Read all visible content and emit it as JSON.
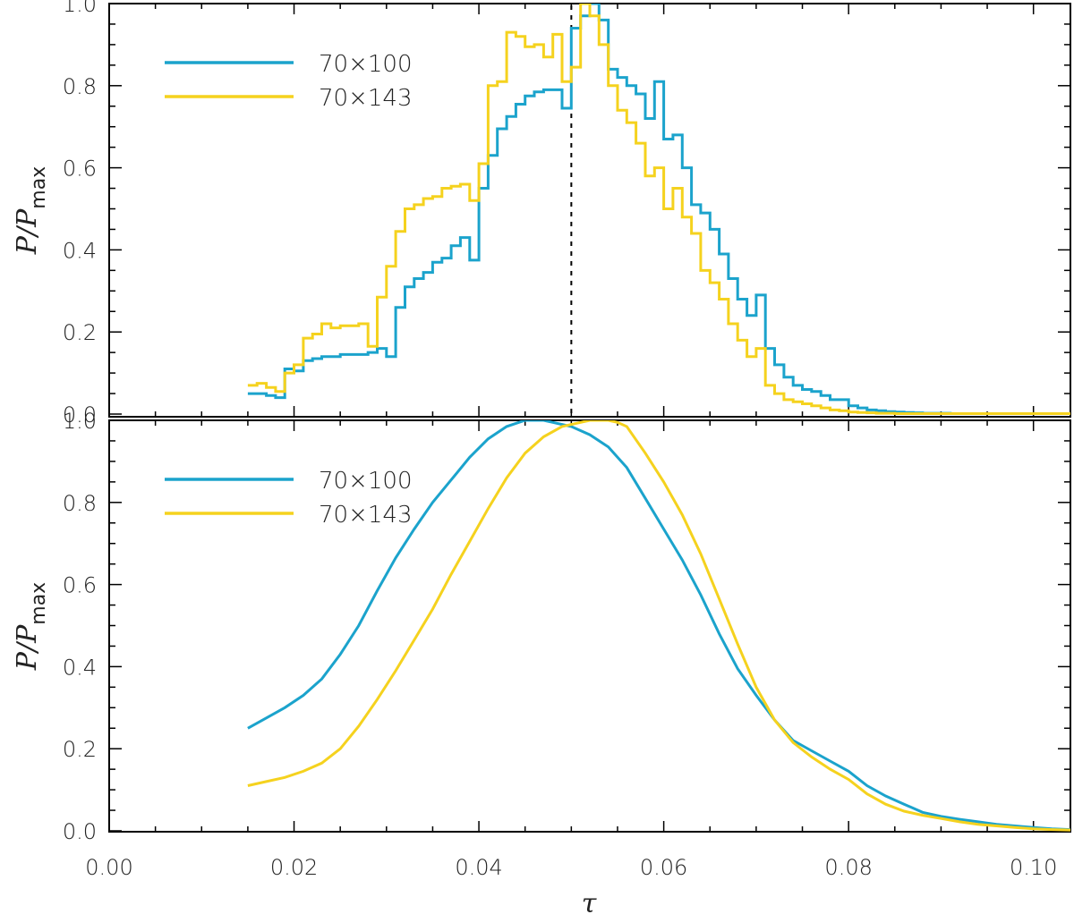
{
  "chart_data": [
    {
      "type": "line",
      "panel": "top",
      "style": "step",
      "xlim": [
        0.0,
        0.104
      ],
      "ylim": [
        0.0,
        1.0
      ],
      "yticks": [
        "0.0",
        "0.2",
        "0.4",
        "0.6",
        "0.8",
        "1.0"
      ],
      "ylabel": "P/P",
      "ylabel_sub": "max",
      "marker_line_x": 0.05,
      "legend": "top-left",
      "series": [
        {
          "name": "70×100",
          "color": "#1ba3cc",
          "x": [
            0.015,
            0.016,
            0.017,
            0.018,
            0.019,
            0.02,
            0.021,
            0.022,
            0.023,
            0.024,
            0.025,
            0.026,
            0.027,
            0.028,
            0.029,
            0.03,
            0.031,
            0.032,
            0.033,
            0.034,
            0.035,
            0.036,
            0.037,
            0.038,
            0.039,
            0.04,
            0.041,
            0.042,
            0.043,
            0.044,
            0.045,
            0.046,
            0.047,
            0.048,
            0.049,
            0.05,
            0.051,
            0.052,
            0.053,
            0.054,
            0.055,
            0.056,
            0.057,
            0.058,
            0.059,
            0.06,
            0.061,
            0.062,
            0.063,
            0.064,
            0.065,
            0.066,
            0.067,
            0.068,
            0.069,
            0.07,
            0.071,
            0.072,
            0.073,
            0.074,
            0.075,
            0.076,
            0.077,
            0.078,
            0.079,
            0.08,
            0.081,
            0.082,
            0.083,
            0.084,
            0.085,
            0.086,
            0.087,
            0.088,
            0.089,
            0.09,
            0.091,
            0.092,
            0.093,
            0.094,
            0.095,
            0.096,
            0.097,
            0.098,
            0.099,
            0.1,
            0.101,
            0.102,
            0.103
          ],
          "y": [
            0.05,
            0.05,
            0.045,
            0.04,
            0.11,
            0.105,
            0.13,
            0.135,
            0.14,
            0.14,
            0.145,
            0.145,
            0.145,
            0.15,
            0.16,
            0.14,
            0.26,
            0.31,
            0.33,
            0.345,
            0.37,
            0.38,
            0.41,
            0.43,
            0.375,
            0.55,
            0.63,
            0.695,
            0.725,
            0.755,
            0.775,
            0.785,
            0.79,
            0.79,
            0.745,
            0.94,
            0.97,
            1.0,
            0.96,
            0.84,
            0.82,
            0.8,
            0.78,
            0.72,
            0.81,
            0.67,
            0.68,
            0.6,
            0.51,
            0.49,
            0.45,
            0.39,
            0.33,
            0.28,
            0.24,
            0.29,
            0.16,
            0.12,
            0.09,
            0.07,
            0.06,
            0.055,
            0.045,
            0.035,
            0.035,
            0.02,
            0.015,
            0.01,
            0.008,
            0.006,
            0.005,
            0.004,
            0.003,
            0.002,
            0.002,
            0.002,
            0.001,
            0.001,
            0.001,
            0.001,
            0.001,
            0.001,
            0.001,
            0.001,
            0.001,
            0.001,
            0.001,
            0.001,
            0.001
          ]
        },
        {
          "name": "70×143",
          "color": "#f5d21e",
          "x": [
            0.015,
            0.016,
            0.017,
            0.018,
            0.019,
            0.02,
            0.021,
            0.022,
            0.023,
            0.024,
            0.025,
            0.026,
            0.027,
            0.028,
            0.029,
            0.03,
            0.031,
            0.032,
            0.033,
            0.034,
            0.035,
            0.036,
            0.037,
            0.038,
            0.039,
            0.04,
            0.041,
            0.042,
            0.043,
            0.044,
            0.045,
            0.046,
            0.047,
            0.048,
            0.049,
            0.05,
            0.051,
            0.052,
            0.053,
            0.054,
            0.055,
            0.056,
            0.057,
            0.058,
            0.059,
            0.06,
            0.061,
            0.062,
            0.063,
            0.064,
            0.065,
            0.066,
            0.067,
            0.068,
            0.069,
            0.07,
            0.071,
            0.072,
            0.073,
            0.074,
            0.075,
            0.076,
            0.077,
            0.078,
            0.079,
            0.08,
            0.081,
            0.082,
            0.083,
            0.084,
            0.085,
            0.086,
            0.087,
            0.088,
            0.089,
            0.09,
            0.091,
            0.092,
            0.093,
            0.094,
            0.095,
            0.096,
            0.097,
            0.098,
            0.099,
            0.1,
            0.101,
            0.102,
            0.103
          ],
          "y": [
            0.07,
            0.075,
            0.065,
            0.055,
            0.1,
            0.12,
            0.185,
            0.195,
            0.22,
            0.21,
            0.215,
            0.215,
            0.22,
            0.165,
            0.285,
            0.36,
            0.445,
            0.5,
            0.51,
            0.525,
            0.53,
            0.55,
            0.555,
            0.56,
            0.52,
            0.61,
            0.8,
            0.81,
            0.93,
            0.92,
            0.895,
            0.9,
            0.87,
            0.925,
            0.81,
            0.845,
            1.0,
            0.97,
            0.9,
            0.8,
            0.74,
            0.71,
            0.66,
            0.58,
            0.6,
            0.5,
            0.55,
            0.48,
            0.44,
            0.35,
            0.32,
            0.28,
            0.22,
            0.18,
            0.14,
            0.16,
            0.07,
            0.05,
            0.035,
            0.03,
            0.025,
            0.02,
            0.015,
            0.01,
            0.008,
            0.005,
            0.004,
            0.003,
            0.002,
            0.002,
            0.001,
            0.001,
            0.001,
            0.001,
            0.001,
            0.001,
            0.001,
            0.001,
            0.001,
            0.001,
            0.001,
            0.001,
            0.001,
            0.001,
            0.001,
            0.001,
            0.001,
            0.001,
            0.001
          ]
        }
      ]
    },
    {
      "type": "line",
      "panel": "bottom",
      "style": "smooth",
      "xlim": [
        0.0,
        0.104
      ],
      "ylim": [
        0.0,
        1.0
      ],
      "xticks": [
        "0.00",
        "0.02",
        "0.04",
        "0.06",
        "0.08",
        "0.10"
      ],
      "yticks": [
        "0.0",
        "0.2",
        "0.4",
        "0.6",
        "0.8",
        "1.0"
      ],
      "xlabel": "τ",
      "ylabel": "P/P",
      "ylabel_sub": "max",
      "legend": "top-left",
      "series": [
        {
          "name": "70×100",
          "color": "#1ba3cc",
          "x": [
            0.015,
            0.017,
            0.019,
            0.021,
            0.023,
            0.025,
            0.027,
            0.029,
            0.031,
            0.033,
            0.035,
            0.037,
            0.039,
            0.041,
            0.043,
            0.045,
            0.047,
            0.048,
            0.049,
            0.05,
            0.052,
            0.054,
            0.056,
            0.058,
            0.06,
            0.062,
            0.064,
            0.066,
            0.068,
            0.07,
            0.072,
            0.074,
            0.076,
            0.078,
            0.08,
            0.082,
            0.084,
            0.086,
            0.088,
            0.09,
            0.092,
            0.094,
            0.096,
            0.098,
            0.1,
            0.102,
            0.104
          ],
          "y": [
            0.25,
            0.275,
            0.3,
            0.33,
            0.37,
            0.43,
            0.5,
            0.585,
            0.665,
            0.735,
            0.8,
            0.855,
            0.91,
            0.955,
            0.985,
            1.0,
            1.0,
            0.995,
            0.99,
            0.985,
            0.965,
            0.935,
            0.885,
            0.81,
            0.735,
            0.66,
            0.575,
            0.48,
            0.395,
            0.33,
            0.27,
            0.22,
            0.195,
            0.17,
            0.145,
            0.11,
            0.085,
            0.065,
            0.045,
            0.035,
            0.028,
            0.022,
            0.016,
            0.012,
            0.008,
            0.005,
            0.003
          ]
        },
        {
          "name": "70×143",
          "color": "#f5d21e",
          "x": [
            0.015,
            0.017,
            0.019,
            0.021,
            0.023,
            0.025,
            0.027,
            0.029,
            0.031,
            0.033,
            0.035,
            0.037,
            0.039,
            0.041,
            0.043,
            0.045,
            0.047,
            0.049,
            0.051,
            0.052,
            0.053,
            0.054,
            0.055,
            0.056,
            0.058,
            0.06,
            0.062,
            0.064,
            0.066,
            0.068,
            0.07,
            0.072,
            0.074,
            0.076,
            0.078,
            0.08,
            0.082,
            0.084,
            0.086,
            0.088,
            0.09,
            0.092,
            0.094,
            0.096,
            0.098,
            0.1,
            0.102,
            0.104
          ],
          "y": [
            0.11,
            0.12,
            0.13,
            0.145,
            0.165,
            0.2,
            0.255,
            0.32,
            0.39,
            0.465,
            0.54,
            0.625,
            0.705,
            0.785,
            0.86,
            0.92,
            0.96,
            0.985,
            0.995,
            1.0,
            1.0,
            1.0,
            0.995,
            0.985,
            0.92,
            0.85,
            0.77,
            0.675,
            0.565,
            0.455,
            0.35,
            0.27,
            0.215,
            0.18,
            0.15,
            0.125,
            0.09,
            0.065,
            0.048,
            0.038,
            0.03,
            0.022,
            0.016,
            0.012,
            0.008,
            0.005,
            0.003,
            0.002
          ]
        }
      ]
    }
  ]
}
